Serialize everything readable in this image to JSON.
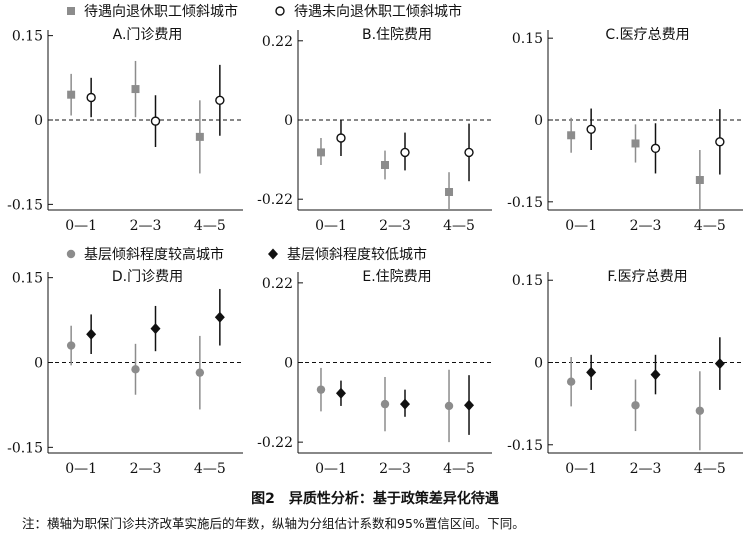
{
  "legends": [
    {
      "entries": [
        {
          "label": "待遇向退休职工倾斜城市",
          "marker": "square",
          "color": "#8c8c8c"
        },
        {
          "label": "待遇未向退休职工倾斜城市",
          "marker": "open-circle",
          "color": "#111111"
        }
      ]
    },
    {
      "entries": [
        {
          "label": "基层倾斜程度较高城市",
          "marker": "circle",
          "color": "#8c8c8c"
        },
        {
          "label": "基层倾斜程度较低城市",
          "marker": "diamond",
          "color": "#111111"
        }
      ]
    }
  ],
  "caption": "图2　异质性分析：基于政策差异化待遇",
  "note": "注：横轴为职保门诊共济改革实施后的年数，纵轴为分组估计系数和95%置信区间。下同。",
  "chart_data": [
    {
      "type": "scatter",
      "title": "A.门诊费用",
      "categories": [
        "0—1",
        "2—3",
        "4—5"
      ],
      "yticks": [
        "0.15",
        "0",
        "-0.15"
      ],
      "ytick_values": [
        0.15,
        0,
        -0.15
      ],
      "ylim": [
        -0.16,
        0.16
      ],
      "series": [
        {
          "name": "待遇向退休职工倾斜城市",
          "marker": "square",
          "color": "#8c8c8c",
          "values": [
            0.045,
            0.055,
            -0.03
          ],
          "lower": [
            0.008,
            0.005,
            -0.095
          ],
          "upper": [
            0.082,
            0.105,
            0.035
          ]
        },
        {
          "name": "待遇未向退休职工倾斜城市",
          "marker": "open-circle",
          "color": "#111111",
          "values": [
            0.04,
            -0.002,
            0.035
          ],
          "lower": [
            0.005,
            -0.048,
            -0.028
          ],
          "upper": [
            0.075,
            0.044,
            0.098
          ]
        }
      ]
    },
    {
      "type": "scatter",
      "title": "B.住院费用",
      "categories": [
        "0—1",
        "2—3",
        "4—5"
      ],
      "yticks": [
        "0.22",
        "0",
        "-0.22"
      ],
      "ytick_values": [
        0.22,
        0,
        -0.22
      ],
      "ylim": [
        -0.25,
        0.25
      ],
      "series": [
        {
          "name": "待遇向退休职工倾斜城市",
          "marker": "square",
          "color": "#8c8c8c",
          "values": [
            -0.09,
            -0.125,
            -0.2
          ],
          "lower": [
            -0.125,
            -0.165,
            -0.25
          ],
          "upper": [
            -0.05,
            -0.085,
            -0.145
          ]
        },
        {
          "name": "待遇未向退休职工倾斜城市",
          "marker": "open-circle",
          "color": "#111111",
          "values": [
            -0.05,
            -0.09,
            -0.09
          ],
          "lower": [
            -0.1,
            -0.14,
            -0.17
          ],
          "upper": [
            0.0,
            -0.035,
            -0.01
          ]
        }
      ]
    },
    {
      "type": "scatter",
      "title": "C.医疗总费用",
      "categories": [
        "0—1",
        "2—3",
        "4—5"
      ],
      "yticks": [
        "0.15",
        "0",
        "-0.15"
      ],
      "ytick_values": [
        0.15,
        0,
        -0.15
      ],
      "ylim": [
        -0.165,
        0.165
      ],
      "series": [
        {
          "name": "待遇向退休职工倾斜城市",
          "marker": "square",
          "color": "#8c8c8c",
          "values": [
            -0.028,
            -0.043,
            -0.11
          ],
          "lower": [
            -0.06,
            -0.078,
            -0.165
          ],
          "upper": [
            0.004,
            -0.008,
            -0.055
          ]
        },
        {
          "name": "待遇未向退休职工倾斜城市",
          "marker": "open-circle",
          "color": "#111111",
          "values": [
            -0.017,
            -0.052,
            -0.04
          ],
          "lower": [
            -0.055,
            -0.098,
            -0.1
          ],
          "upper": [
            0.021,
            -0.006,
            0.02
          ]
        }
      ]
    },
    {
      "type": "scatter",
      "title": "D.门诊费用",
      "categories": [
        "0—1",
        "2—3",
        "4—5"
      ],
      "yticks": [
        "0.15",
        "0",
        "-0.15"
      ],
      "ytick_values": [
        0.15,
        0,
        -0.15
      ],
      "ylim": [
        -0.16,
        0.16
      ],
      "series": [
        {
          "name": "基层倾斜程度较高城市",
          "marker": "circle",
          "color": "#8c8c8c",
          "values": [
            0.03,
            -0.012,
            -0.018
          ],
          "lower": [
            -0.005,
            -0.057,
            -0.083
          ],
          "upper": [
            0.065,
            0.033,
            0.047
          ]
        },
        {
          "name": "基层倾斜程度较低城市",
          "marker": "diamond",
          "color": "#111111",
          "values": [
            0.05,
            0.06,
            0.08
          ],
          "lower": [
            0.015,
            0.02,
            0.03
          ],
          "upper": [
            0.085,
            0.1,
            0.13
          ]
        }
      ]
    },
    {
      "type": "scatter",
      "title": "E.住院费用",
      "categories": [
        "0—1",
        "2—3",
        "4—5"
      ],
      "yticks": [
        "0.22",
        "0",
        "-0.22"
      ],
      "ytick_values": [
        0.22,
        0,
        -0.22
      ],
      "ylim": [
        -0.25,
        0.25
      ],
      "series": [
        {
          "name": "基层倾斜程度较高城市",
          "marker": "circle",
          "color": "#8c8c8c",
          "values": [
            -0.075,
            -0.115,
            -0.12
          ],
          "lower": [
            -0.135,
            -0.19,
            -0.22
          ],
          "upper": [
            -0.015,
            -0.04,
            -0.02
          ]
        },
        {
          "name": "基层倾斜程度较低城市",
          "marker": "diamond",
          "color": "#111111",
          "values": [
            -0.085,
            -0.115,
            -0.118
          ],
          "lower": [
            -0.12,
            -0.15,
            -0.2
          ],
          "upper": [
            -0.05,
            -0.075,
            -0.035
          ]
        }
      ]
    },
    {
      "type": "scatter",
      "title": "F.医疗总费用",
      "categories": [
        "0—1",
        "2—3",
        "4—5"
      ],
      "yticks": [
        "0.15",
        "0",
        "-0.15"
      ],
      "ytick_values": [
        0.15,
        0,
        -0.15
      ],
      "ylim": [
        -0.165,
        0.165
      ],
      "series": [
        {
          "name": "基层倾斜程度较高城市",
          "marker": "circle",
          "color": "#8c8c8c",
          "values": [
            -0.035,
            -0.078,
            -0.088
          ],
          "lower": [
            -0.08,
            -0.125,
            -0.16
          ],
          "upper": [
            0.01,
            -0.031,
            -0.016
          ]
        },
        {
          "name": "基层倾斜程度较低城市",
          "marker": "diamond",
          "color": "#111111",
          "values": [
            -0.018,
            -0.022,
            -0.002
          ],
          "lower": [
            -0.05,
            -0.058,
            -0.05
          ],
          "upper": [
            0.014,
            0.014,
            0.046
          ]
        }
      ]
    }
  ]
}
